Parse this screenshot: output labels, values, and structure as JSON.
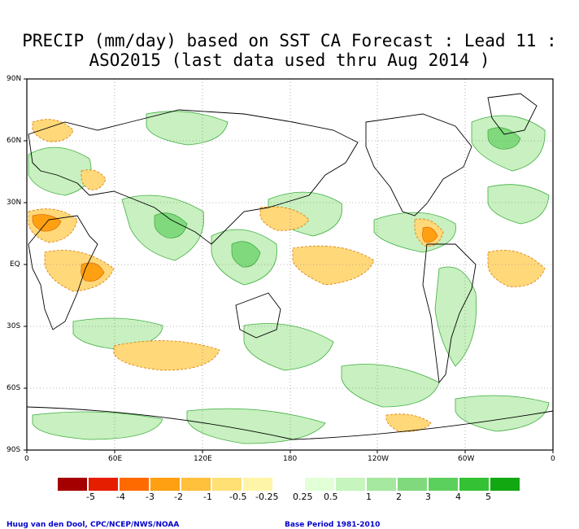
{
  "title_line1": "PRECIP (mm/day) based on SST CA Forecast : Lead 11 :",
  "title_line2": "ASO2015 (last data used thru Aug 2014 )",
  "lat_labels": [
    "90N",
    "60N",
    "30N",
    "EQ",
    "30S",
    "60S",
    "90S"
  ],
  "lon_labels": [
    "0",
    "60E",
    "120E",
    "180",
    "120W",
    "60W",
    "0"
  ],
  "colorbar": {
    "colors": [
      "#a50000",
      "#e61e00",
      "#ff6a00",
      "#ffa012",
      "#ffc03c",
      "#ffe075",
      "#fff5a8",
      "#ffffff",
      "#e2ffd8",
      "#c6f5be",
      "#a6e8a0",
      "#80da7d",
      "#5cd05c",
      "#34c234",
      "#12a812"
    ],
    "labels": [
      "-5",
      "-4",
      "-3",
      "-2",
      "-1",
      "-0.5",
      "-0.25",
      "0.25",
      "0.5",
      "1",
      "2",
      "3",
      "4",
      "5"
    ]
  },
  "footer_left": "Huug van den Dool, CPC/NCEP/NWS/NOAA",
  "footer_right": "Base Period 1981-2010"
}
